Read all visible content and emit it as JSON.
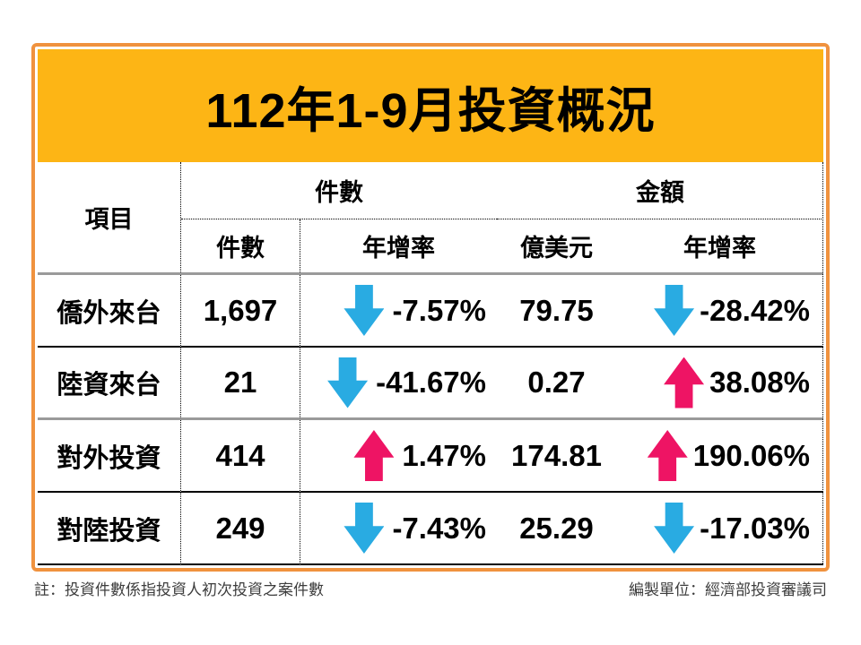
{
  "title": "112年1-9月投資概況",
  "table": {
    "item_header": "項目",
    "group_headers": {
      "count": "件數",
      "amount": "金額"
    },
    "sub_headers": {
      "count": "件數",
      "count_yoy": "年增率",
      "amount_usd": "億美元",
      "amount_yoy": "年增率"
    },
    "rows": [
      {
        "label": "僑外來台",
        "count": "1,697",
        "count_yoy": "-7.57%",
        "count_dir": "down",
        "amount": "79.75",
        "amount_yoy": "-28.42%",
        "amount_dir": "down"
      },
      {
        "label": "陸資來台",
        "count": "21",
        "count_yoy": "-41.67%",
        "count_dir": "down",
        "amount": "0.27",
        "amount_yoy": "38.08%",
        "amount_dir": "up"
      },
      {
        "label": "對外投資",
        "count": "414",
        "count_yoy": "1.47%",
        "count_dir": "up",
        "amount": "174.81",
        "amount_yoy": "190.06%",
        "amount_dir": "up"
      },
      {
        "label": "對陸投資",
        "count": "249",
        "count_yoy": "-7.43%",
        "count_dir": "down",
        "amount": "25.29",
        "amount_yoy": "-17.03%",
        "amount_dir": "down"
      }
    ]
  },
  "footer": {
    "note": "註：投資件數係指投資人初次投資之案件數",
    "source": "編製單位：經濟部投資審議司"
  },
  "colors": {
    "frame_orange": "#F0923E",
    "title_background": "#FDB515",
    "up_arrow_pink": "#EE1464",
    "down_arrow_blue": "#29ABE2",
    "divider_gray": "#9A9A9A"
  },
  "chart_data": {
    "type": "table",
    "title": "112年1-9月投資概況",
    "columns": [
      "項目",
      "件數-件數",
      "件數-年增率(%)",
      "金額-億美元",
      "金額-年增率(%)"
    ],
    "rows": [
      [
        "僑外來台",
        1697,
        -7.57,
        79.75,
        -28.42
      ],
      [
        "陸資來台",
        21,
        -41.67,
        0.27,
        38.08
      ],
      [
        "對外投資",
        414,
        1.47,
        174.81,
        190.06
      ],
      [
        "對陸投資",
        249,
        -7.43,
        25.29,
        -17.03
      ]
    ]
  }
}
